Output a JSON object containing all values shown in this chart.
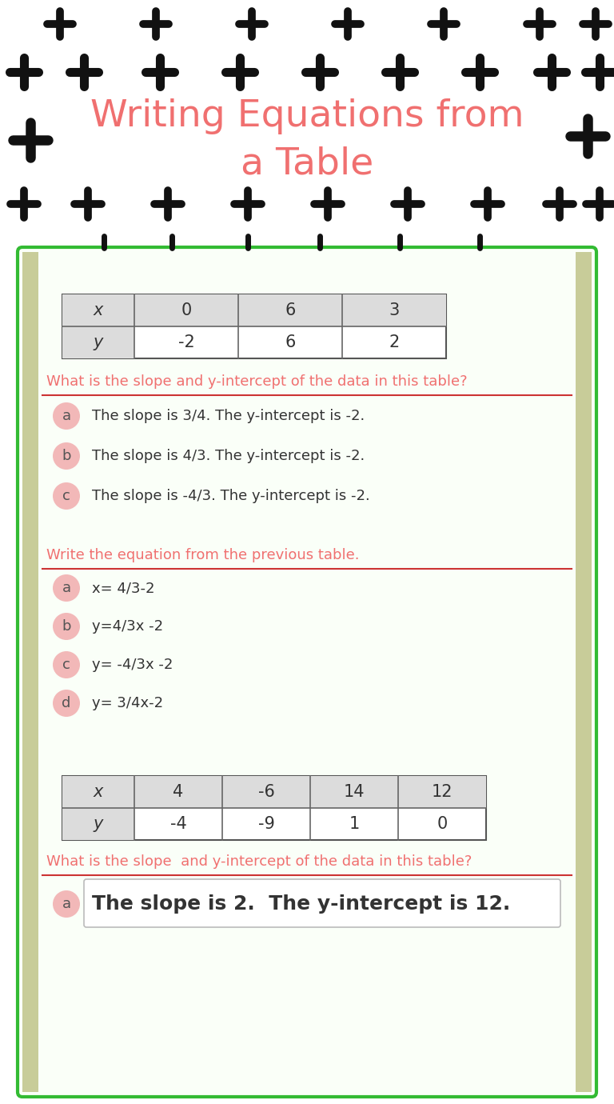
{
  "title_line1": "Writing Equations from",
  "title_line2": "a Table",
  "title_color": "#F07070",
  "bg_color": "#FFFFFF",
  "green_border": "#33BB33",
  "olive_side": "#C8CC99",
  "red_line": "#CC3333",
  "question_color": "#F07070",
  "circle_color": "#F2B8B8",
  "answer_text_color": "#333333",
  "table_header_bg": "#E0E0E0",
  "table1_headers": [
    "x",
    "0",
    "6",
    "3"
  ],
  "table1_row2": [
    "y",
    "-2",
    "6",
    "2"
  ],
  "q1_text": "What is the slope and y-intercept of the data in this table?",
  "q1_answers": [
    [
      "a",
      "The slope is 3/4. The y-intercept is -2."
    ],
    [
      "b",
      "The slope is 4/3. The y-intercept is -2."
    ],
    [
      "c",
      "The slope is -4/3. The y-intercept is -2."
    ]
  ],
  "q2_text": "Write the equation from the previous table.",
  "q2_answers": [
    [
      "a",
      "x= 4/3-2"
    ],
    [
      "b",
      "y=4/3x -2"
    ],
    [
      "c",
      "y= -4/3x -2"
    ],
    [
      "d",
      "y= 3/4x-2"
    ]
  ],
  "table2_headers": [
    "x",
    "4",
    "-6",
    "14",
    "12"
  ],
  "table2_row2": [
    "y",
    "-4",
    "-9",
    "1",
    "0"
  ],
  "q3_text": "What is the slope  and y-intercept of the data in this table?",
  "q3_answer_text": "The slope is 2.  The y-intercept is 12."
}
